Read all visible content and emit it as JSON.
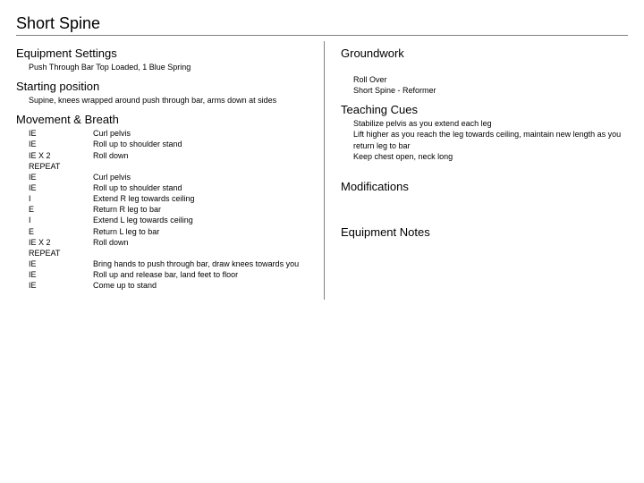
{
  "title": "Short Spine",
  "left": {
    "equipment_heading": "Equipment Settings",
    "equipment_body": "Push Through Bar Top Loaded, 1 Blue Spring",
    "starting_heading": "Starting position",
    "starting_body": "Supine, knees wrapped around push through bar, arms down at sides",
    "movement_heading": "Movement & Breath",
    "movement_rows": [
      {
        "b": "IE",
        "d": "Curl pelvis"
      },
      {
        "b": "IE",
        "d": "Roll up to shoulder stand"
      },
      {
        "b": "IE X 2",
        "d": "Roll down"
      },
      {
        "b": "REPEAT",
        "d": ""
      },
      {
        "b": "IE",
        "d": "Curl pelvis"
      },
      {
        "b": "IE",
        "d": "Roll up to shoulder stand"
      },
      {
        "b": "I",
        "d": "Extend R leg towards ceiling"
      },
      {
        "b": "E",
        "d": "Return R leg to bar"
      },
      {
        "b": "I",
        "d": "Extend L leg towards ceiling"
      },
      {
        "b": "E",
        "d": "Return L leg to bar"
      },
      {
        "b": "IE X 2",
        "d": "Roll down"
      },
      {
        "b": "REPEAT",
        "d": ""
      },
      {
        "b": "IE",
        "d": "Bring hands to push through bar, draw knees towards you"
      },
      {
        "b": "IE",
        "d": "Roll up and release bar, land feet to floor"
      },
      {
        "b": "IE",
        "d": "Come up to stand"
      }
    ]
  },
  "right": {
    "groundwork_heading": "Groundwork",
    "groundwork_lines": [
      "Roll Over",
      "Short Spine - Reformer"
    ],
    "cues_heading": "Teaching Cues",
    "cues_lines": [
      "Stabilize pelvis as you extend each leg",
      "Lift higher as you reach the leg towards ceiling, maintain new length as you return leg to bar",
      "Keep chest open, neck long"
    ],
    "modifications_heading": "Modifications",
    "notes_heading": "Equipment Notes"
  }
}
